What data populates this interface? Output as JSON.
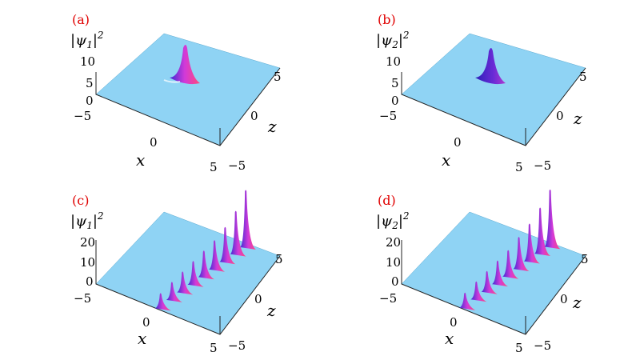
{
  "chart_data": [
    {
      "type": "surface3d",
      "panel_label": "(a)",
      "zlabel": "|ψ1|²",
      "zlabel_base": "|ψ",
      "zlabel_sub": "1",
      "zlabel_close": "|",
      "zlabel_sup": "2",
      "xlabel": "x",
      "ylabel": "z",
      "x_ticks": [
        "−5",
        "0",
        "5"
      ],
      "y_ticks": [
        "−5",
        "0",
        "5"
      ],
      "z_ticks": [
        "0",
        "5",
        "10"
      ],
      "xlim": [
        -5,
        5
      ],
      "ylim": [
        -5,
        5
      ],
      "zlim": [
        0,
        10
      ],
      "peaks": [
        {
          "x": 1.0,
          "z": 1.2,
          "height": 9
        }
      ]
    },
    {
      "type": "surface3d",
      "panel_label": "(b)",
      "zlabel": "|ψ2|²",
      "zlabel_base": "|ψ",
      "zlabel_sub": "2",
      "zlabel_close": "|",
      "zlabel_sup": "2",
      "xlabel": "x",
      "ylabel": "z",
      "x_ticks": [
        "−5",
        "0",
        "5"
      ],
      "y_ticks": [
        "−5",
        "0",
        "5"
      ],
      "z_ticks": [
        "0",
        "5",
        "10"
      ],
      "xlim": [
        -5,
        5
      ],
      "ylim": [
        -5,
        5
      ],
      "zlim": [
        0,
        10
      ],
      "peaks": [
        {
          "x": 1.0,
          "z": 1.2,
          "height": 8
        }
      ]
    },
    {
      "type": "surface3d",
      "panel_label": "(c)",
      "zlabel": "|ψ1|²",
      "zlabel_base": "|ψ",
      "zlabel_sub": "1",
      "zlabel_close": "|",
      "zlabel_sup": "2",
      "xlabel": "x",
      "ylabel": "z",
      "x_ticks": [
        "−5",
        "0",
        "5"
      ],
      "y_ticks": [
        "−5",
        "0",
        "5"
      ],
      "z_ticks": [
        "0",
        "10",
        "20"
      ],
      "xlim": [
        -5,
        5
      ],
      "ylim": [
        -5,
        5
      ],
      "zlim": [
        0,
        20
      ],
      "peaks": [
        {
          "x": 0.1,
          "z": -4.8,
          "height": 5
        },
        {
          "x": 0.3,
          "z": -3.5,
          "height": 6
        },
        {
          "x": 0.5,
          "z": -2.3,
          "height": 7
        },
        {
          "x": 0.7,
          "z": -1.1,
          "height": 8
        },
        {
          "x": 0.9,
          "z": 0.1,
          "height": 9
        },
        {
          "x": 1.1,
          "z": 1.3,
          "height": 10
        },
        {
          "x": 1.3,
          "z": 2.5,
          "height": 12
        },
        {
          "x": 1.5,
          "z": 3.7,
          "height": 15
        },
        {
          "x": 1.7,
          "z": 4.8,
          "height": 20
        }
      ]
    },
    {
      "type": "surface3d",
      "panel_label": "(d)",
      "zlabel": "|ψ2|²",
      "zlabel_base": "|ψ",
      "zlabel_sub": "2",
      "zlabel_close": "|",
      "zlabel_sup": "2",
      "xlabel": "x",
      "ylabel": "z",
      "x_ticks": [
        "−5",
        "0",
        "5"
      ],
      "y_ticks": [
        "−5",
        "0",
        "5"
      ],
      "z_ticks": [
        "0",
        "10",
        "20"
      ],
      "xlim": [
        -5,
        5
      ],
      "ylim": [
        -5,
        5
      ],
      "zlim": [
        0,
        20
      ],
      "peaks": [
        {
          "x": 0.0,
          "z": -4.8,
          "height": 5
        },
        {
          "x": 0.2,
          "z": -3.5,
          "height": 6
        },
        {
          "x": 0.4,
          "z": -2.3,
          "height": 7
        },
        {
          "x": 0.6,
          "z": -1.1,
          "height": 8
        },
        {
          "x": 0.8,
          "z": 0.1,
          "height": 9
        },
        {
          "x": 1.0,
          "z": 1.3,
          "height": 11
        },
        {
          "x": 1.2,
          "z": 2.5,
          "height": 13
        },
        {
          "x": 1.4,
          "z": 3.7,
          "height": 16
        },
        {
          "x": 1.6,
          "z": 4.8,
          "height": 20
        }
      ]
    }
  ]
}
